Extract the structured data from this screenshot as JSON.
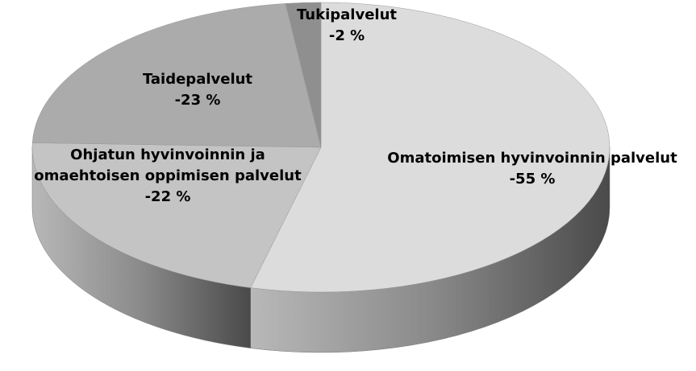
{
  "chart_data": {
    "type": "pie",
    "categories": [
      "Omatoimisen hyvinvoinnin palvelut",
      "Ohjatun hyvinvoinnin ja omaehtoisen oppimisen palvelut",
      "Taidepalvelut",
      "Tukipalvelut"
    ],
    "values": [
      -55,
      -22,
      -23,
      -2
    ],
    "value_labels": [
      "-55 %",
      "-22 %",
      "-23 %",
      "-2 %"
    ],
    "colors": [
      "#dcdcdc",
      "#c4c4c4",
      "#ababab",
      "#8f8f8f"
    ]
  }
}
